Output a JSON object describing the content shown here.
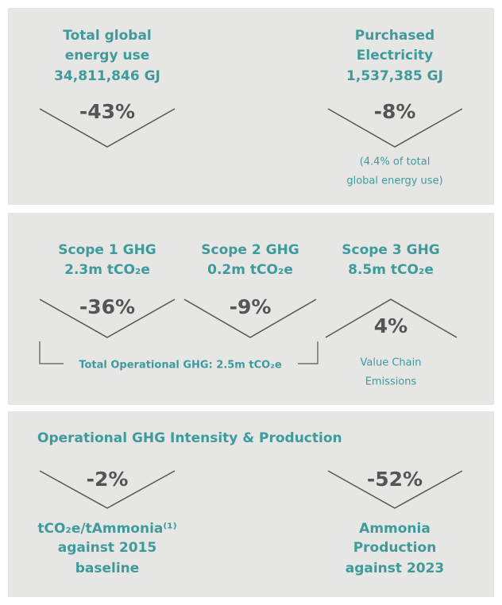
{
  "panels": [
    {
      "items": [
        {
          "title_lines": [
            "Total global",
            "energy use",
            "34,811,846 GJ"
          ],
          "change": "-43%"
        },
        {
          "title_lines": [
            "Purchased",
            "Electricity",
            "1,537,385 GJ"
          ],
          "change": "-8%",
          "note_lines": [
            "(4.4% of total",
            "global energy use)"
          ]
        }
      ]
    },
    {
      "items": [
        {
          "title_lines": [
            "Scope 1 GHG",
            "2.3m tCO₂e"
          ],
          "change": "-36%"
        },
        {
          "title_lines": [
            "Scope 2 GHG",
            "0.2m tCO₂e"
          ],
          "change": "-9%"
        },
        {
          "title_lines": [
            "Scope 3 GHG",
            "8.5m tCO₂e"
          ],
          "change": "4%",
          "note_lines": [
            "Value Chain",
            "Emissions"
          ]
        }
      ],
      "bracket_label": "Total Operational GHG: 2.5m tCO₂e"
    },
    {
      "title": "Operational GHG Intensity & Production",
      "items": [
        {
          "change": "-2%",
          "caption_lines": [
            "tCO₂e/tAmmonia⁽¹⁾",
            "against 2015",
            "baseline"
          ]
        },
        {
          "change": "-52%",
          "caption_lines": [
            "Ammonia",
            "Production",
            "against 2023"
          ]
        }
      ]
    }
  ]
}
